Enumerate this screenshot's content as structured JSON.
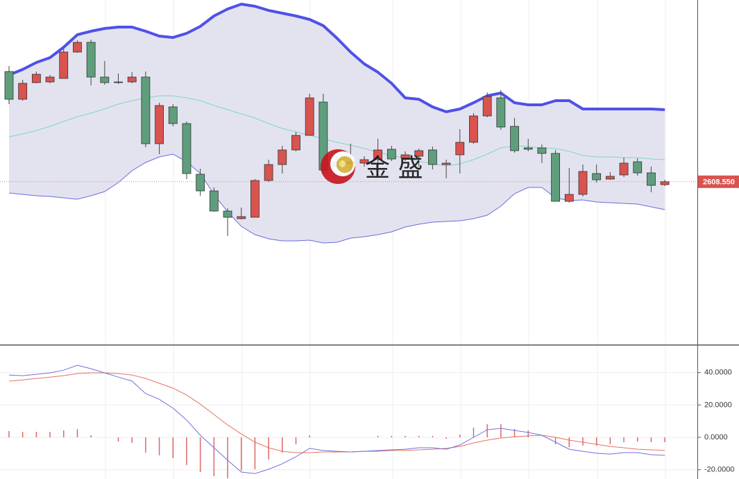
{
  "chart_data": [
    {
      "type": "candlestick",
      "ylim": [
        2549.75,
        2674
      ],
      "up_color": "#d9534f",
      "down_color": "#5e9e7c",
      "band_fill": "#e3e3f0",
      "upper_color": "#5050e8",
      "middle_color": "#7fd6c4",
      "lower_color": "#6a6ae0",
      "open": [
        2648.25,
        2638.25,
        2644.25,
        2644.5,
        2645.75,
        2655.25,
        2658.75,
        2646.25,
        2644.5,
        2644.5,
        2646.25,
        2622.25,
        2635.5,
        2629.5,
        2611.25,
        2605.25,
        2598,
        2595.25,
        2595.75,
        2609,
        2614.75,
        2620,
        2625.25,
        2637.25,
        2615.75,
        2615,
        2615.25,
        2616.5,
        2620.25,
        2617,
        2617.75,
        2620,
        2614.75,
        2618.25,
        2622.75,
        2632.25,
        2638.75,
        2628.5,
        2620.75,
        2620.75,
        2618.75,
        2601.5,
        2604,
        2611.5,
        2609.5,
        2611,
        2615.75,
        2611.75,
        2607.5
      ],
      "high": [
        2650.25,
        2645.25,
        2648.25,
        2647,
        2656.5,
        2659.5,
        2659.75,
        2652,
        2647.5,
        2648,
        2648.25,
        2637,
        2636.5,
        2630.25,
        2613.25,
        2606.5,
        2599,
        2599.25,
        2609.5,
        2616.5,
        2621.5,
        2626.5,
        2640.25,
        2640.25,
        2617.75,
        2622.25,
        2617.75,
        2624,
        2621.5,
        2619.5,
        2620.5,
        2621.25,
        2616.5,
        2627.5,
        2633.25,
        2640.75,
        2641.5,
        2631.5,
        2624,
        2622,
        2620,
        2613.5,
        2614.75,
        2614.75,
        2612,
        2617.25,
        2617,
        2614,
        2609.25
      ],
      "low": [
        2636.5,
        2637.75,
        2644,
        2644,
        2645.75,
        2655,
        2643.25,
        2643.5,
        2643.75,
        2644,
        2621,
        2618.5,
        2628.5,
        2609.5,
        2603.5,
        2597.75,
        2589,
        2595,
        2595.75,
        2608.5,
        2611.5,
        2619.5,
        2625.25,
        2611.5,
        2613.25,
        2611.5,
        2614,
        2614,
        2616,
        2616,
        2614,
        2613,
        2609.75,
        2611.5,
        2622.25,
        2631.75,
        2627.25,
        2619,
        2619.5,
        2615.25,
        2601.5,
        2601,
        2603.25,
        2608.25,
        2609.25,
        2610.25,
        2610.75,
        2604.75,
        2607
      ],
      "close": [
        2638.25,
        2644,
        2647.25,
        2646.25,
        2655.25,
        2658.75,
        2646.25,
        2644.25,
        2644.25,
        2646.25,
        2622.25,
        2636,
        2629.5,
        2611.5,
        2605.25,
        2598,
        2595.75,
        2596,
        2609,
        2614.75,
        2620,
        2625.25,
        2638.75,
        2612.75,
        2614,
        2615.75,
        2616.5,
        2620,
        2616.75,
        2618.25,
        2619.75,
        2614.75,
        2615.25,
        2622.75,
        2632.25,
        2639.25,
        2628.25,
        2619.75,
        2620.25,
        2618.75,
        2601.5,
        2604,
        2612.25,
        2609.25,
        2610.5,
        2615.25,
        2611.75,
        2607.25,
        2608.55
      ],
      "upper_band": [
        2647,
        2649,
        2651.5,
        2653.25,
        2657,
        2661.5,
        2662.75,
        2663.75,
        2664.25,
        2664.25,
        2662.75,
        2661,
        2660.5,
        2662,
        2664.5,
        2668.25,
        2670.75,
        2672.5,
        2671.75,
        2670.25,
        2669.25,
        2668.25,
        2667,
        2664.75,
        2660.25,
        2655.25,
        2651,
        2648,
        2644,
        2638.75,
        2638.25,
        2635.5,
        2633.75,
        2634.75,
        2637,
        2639.5,
        2640.5,
        2637,
        2636.25,
        2636.25,
        2637.75,
        2637.75,
        2634.75,
        2634.75,
        2634.75,
        2634.75,
        2634.75,
        2634.75,
        2634.5
      ],
      "middle_band": [
        2624.75,
        2625.75,
        2627,
        2628.5,
        2630.25,
        2632,
        2633.25,
        2634.75,
        2636.5,
        2637.75,
        2638.75,
        2639.5,
        2639.5,
        2638.75,
        2637.75,
        2636,
        2634.5,
        2633,
        2631.5,
        2629.5,
        2627.75,
        2626.5,
        2625.25,
        2624,
        2622.75,
        2621.75,
        2620.5,
        2619.25,
        2618,
        2617,
        2616,
        2615,
        2614.25,
        2615,
        2616.5,
        2618.5,
        2620.75,
        2621.5,
        2621.25,
        2620.75,
        2620.5,
        2619.5,
        2618,
        2617.5,
        2617.5,
        2617.25,
        2617.25,
        2616.75,
        2616.5
      ],
      "lower_band": [
        2604.5,
        2604,
        2603.5,
        2603.25,
        2602.75,
        2602.25,
        2603.5,
        2605,
        2608.25,
        2612.5,
        2615.5,
        2617.5,
        2618.5,
        2615.75,
        2611.5,
        2604,
        2597.75,
        2592.5,
        2589.5,
        2588,
        2587.25,
        2587.25,
        2587.5,
        2586.5,
        2586.75,
        2588.25,
        2588.75,
        2589.5,
        2590.5,
        2592.25,
        2593.25,
        2594,
        2594.25,
        2594.5,
        2595.25,
        2596.5,
        2599.75,
        2604.25,
        2606.5,
        2606.5,
        2602.75,
        2601.75,
        2602,
        2601.25,
        2601,
        2600.75,
        2600.5,
        2599.5,
        2598.5
      ],
      "last_price": {
        "value": 2608.55,
        "label": "2608.550"
      },
      "watermark": "金 盛"
    },
    {
      "type": "macd",
      "ylim": [
        -25.7,
        57
      ],
      "yticks": [
        {
          "value": 40,
          "label": "40.0000"
        },
        {
          "value": 20,
          "label": "20.0000"
        },
        {
          "value": 0,
          "label": "0.0000"
        },
        {
          "value": -20,
          "label": "-20.0000"
        }
      ],
      "grid": true,
      "dif_color": "#7070e0",
      "dea_color": "#e87060",
      "hist_color": "#e06666",
      "dif": [
        38.5,
        38.1,
        38.9,
        39.8,
        41.5,
        44.5,
        42.4,
        39.8,
        37.2,
        34.7,
        27.0,
        23.5,
        18.0,
        10.7,
        1.3,
        -6.4,
        -14.1,
        -21.4,
        -22.3,
        -19.7,
        -16.3,
        -12.0,
        -6.8,
        -8.1,
        -8.6,
        -9.0,
        -8.6,
        -8.1,
        -7.7,
        -7.3,
        -6.4,
        -6.4,
        -7.3,
        -4.7,
        0,
        4.7,
        5.6,
        4.3,
        3.0,
        1.3,
        -3.0,
        -7.3,
        -8.6,
        -9.8,
        -10.3,
        -9.4,
        -9.4,
        -10.7,
        -11.1
      ],
      "dea": [
        34.7,
        35.5,
        36.4,
        37.2,
        38.1,
        39.4,
        39.8,
        39.8,
        39.4,
        38.5,
        36.4,
        33.4,
        30.4,
        26.1,
        20.5,
        14.1,
        7.7,
        2.1,
        -3.0,
        -6.4,
        -8.6,
        -9.4,
        -9.4,
        -9.0,
        -9.0,
        -9.0,
        -8.6,
        -8.6,
        -8.1,
        -8.1,
        -7.7,
        -7.3,
        -6.8,
        -5.6,
        -3.4,
        -1.7,
        -0.4,
        0.4,
        0.9,
        1.3,
        0,
        -1.7,
        -3.0,
        -4.3,
        -5.6,
        -6.4,
        -7.3,
        -7.7,
        -8.1
      ],
      "histogram": [
        3.9,
        3.4,
        3.4,
        3.4,
        4.3,
        5.1,
        1.3,
        0,
        -2.6,
        -3.4,
        -9.4,
        -11.1,
        -12.8,
        -17.1,
        -21.4,
        -24.0,
        -25.3,
        -20.5,
        -19.7,
        -13.7,
        -9.4,
        -4.3,
        1.3,
        0,
        0,
        0,
        0,
        0.9,
        0.9,
        0.9,
        0.9,
        0.9,
        -0.9,
        1.7,
        6.0,
        8.1,
        8.1,
        5.1,
        4.3,
        0,
        -4.3,
        -6.0,
        -5.1,
        -5.1,
        -4.3,
        -3.0,
        -2.6,
        -3.0,
        -3.0
      ]
    }
  ]
}
